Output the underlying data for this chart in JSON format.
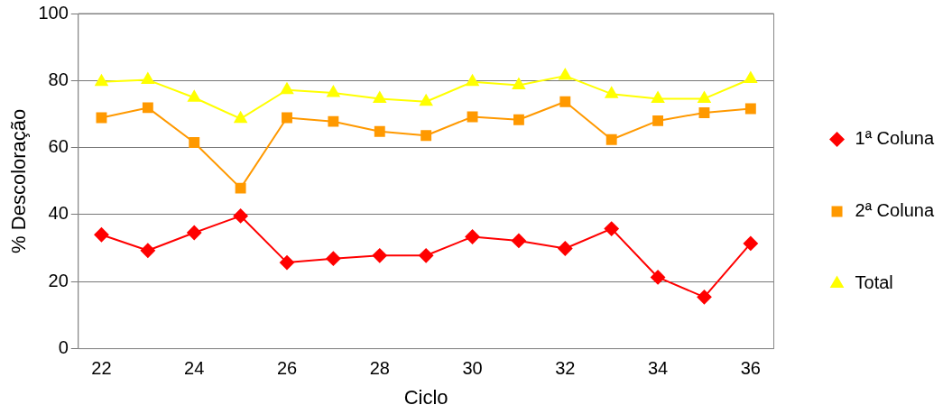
{
  "chart_data": {
    "type": "line",
    "xlabel": "Ciclo",
    "ylabel": "% Descoloração",
    "categories": [
      "22",
      null,
      "24",
      null,
      "26",
      null,
      "28",
      null,
      "30",
      null,
      "32",
      null,
      "34",
      null,
      "36"
    ],
    "series": [
      {
        "name": "1ª Coluna",
        "color": "#ff0000",
        "marker": "diamond",
        "values": [
          34.0,
          29.3,
          34.6,
          39.6,
          25.7,
          26.9,
          27.8,
          27.8,
          33.4,
          32.2,
          29.9,
          35.8,
          21.3,
          15.4,
          31.4
        ]
      },
      {
        "name": "2ª Coluna",
        "color": "#ff9900",
        "marker": "square",
        "values": [
          68.9,
          71.9,
          61.5,
          47.9,
          68.9,
          67.8,
          64.8,
          63.6,
          69.2,
          68.3,
          73.7,
          62.4,
          68.0,
          70.4,
          71.6
        ]
      },
      {
        "name": "Total",
        "color": "#ffff00",
        "marker": "triangle",
        "values": [
          79.6,
          80.2,
          74.9,
          68.6,
          77.2,
          76.3,
          74.6,
          73.7,
          79.6,
          78.6,
          81.4,
          76.0,
          74.6,
          74.6,
          80.5
        ]
      }
    ],
    "ylim": [
      0,
      100
    ],
    "yticks": [
      0,
      20,
      40,
      60,
      80,
      100
    ],
    "grid": "y",
    "legend": "right",
    "line_style": "solid"
  }
}
